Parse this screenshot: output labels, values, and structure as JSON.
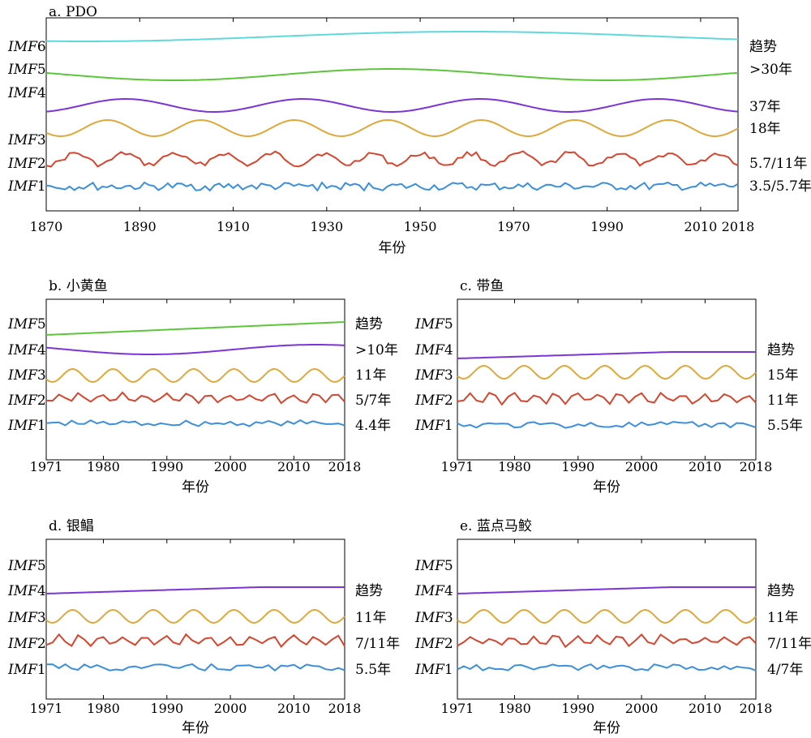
{
  "chart_data": [
    {
      "id": "a",
      "type": "line",
      "title": "a. PDO",
      "xlabel": "年份",
      "xlim": [
        1870,
        2018
      ],
      "xticks": [
        1870,
        1890,
        1910,
        1930,
        1950,
        1970,
        1990,
        2010,
        2018
      ],
      "imf_labels": [
        "IMF6",
        "IMF5",
        "IMF4",
        "IMF3",
        "IMF2",
        "IMF1"
      ],
      "period_labels": [
        "趋势",
        ">30年",
        "37年",
        "18年",
        "5.7/11年",
        "3.5/5.7年"
      ],
      "series": [
        {
          "name": "IMF6",
          "color": "#5ed8dc"
        },
        {
          "name": "IMF5",
          "color": "#5cc63a"
        },
        {
          "name": "IMF4",
          "color": "#7b34d6"
        },
        {
          "name": "IMF3",
          "color": "#e0a83a"
        },
        {
          "name": "IMF2",
          "color": "#d6462f"
        },
        {
          "name": "IMF1",
          "color": "#3c8fdc"
        }
      ]
    },
    {
      "id": "b",
      "type": "line",
      "title": "b. 小黄鱼",
      "xlabel": "年份",
      "xlim": [
        1971,
        2018
      ],
      "xticks": [
        1971,
        1980,
        1990,
        2000,
        2010,
        2018
      ],
      "imf_labels": [
        "IMF5",
        "IMF4",
        "IMF3",
        "IMF2",
        "IMF1"
      ],
      "period_labels": [
        "趋势",
        ">10年",
        "11年",
        "5/7年",
        "4.4年"
      ],
      "series": [
        {
          "name": "IMF5",
          "color": "#5cc63a"
        },
        {
          "name": "IMF4",
          "color": "#7b34d6"
        },
        {
          "name": "IMF3",
          "color": "#e0a83a"
        },
        {
          "name": "IMF2",
          "color": "#d6462f"
        },
        {
          "name": "IMF1",
          "color": "#3c8fdc"
        }
      ]
    },
    {
      "id": "c",
      "type": "line",
      "title": "c. 带鱼",
      "xlabel": "年份",
      "xlim": [
        1971,
        2018
      ],
      "xticks": [
        1971,
        1980,
        1990,
        2000,
        2010,
        2018
      ],
      "imf_labels": [
        "IMF5",
        "IMF4",
        "IMF3",
        "IMF2",
        "IMF1"
      ],
      "period_labels": [
        "趋势",
        "15年",
        "11年",
        "5.5年"
      ],
      "series": [
        {
          "name": "IMF4",
          "color": "#7b34d6"
        },
        {
          "name": "IMF3",
          "color": "#e0a83a"
        },
        {
          "name": "IMF2",
          "color": "#d6462f"
        },
        {
          "name": "IMF1",
          "color": "#3c8fdc"
        }
      ]
    },
    {
      "id": "d",
      "type": "line",
      "title": "d. 银鲳",
      "xlabel": "年份",
      "xlim": [
        1971,
        2018
      ],
      "xticks": [
        1971,
        1980,
        1990,
        2000,
        2010,
        2018
      ],
      "imf_labels": [
        "IMF5",
        "IMF4",
        "IMF3",
        "IMF2",
        "IMF1"
      ],
      "period_labels": [
        "趋势",
        "11年",
        "7/11年",
        "5.5年"
      ],
      "series": [
        {
          "name": "IMF4",
          "color": "#7b34d6"
        },
        {
          "name": "IMF3",
          "color": "#e0a83a"
        },
        {
          "name": "IMF2",
          "color": "#d6462f"
        },
        {
          "name": "IMF1",
          "color": "#3c8fdc"
        }
      ]
    },
    {
      "id": "e",
      "type": "line",
      "title": "e. 蓝点马鲛",
      "xlabel": "年份",
      "xlim": [
        1971,
        2018
      ],
      "xticks": [
        1971,
        1980,
        1990,
        2000,
        2010,
        2018
      ],
      "imf_labels": [
        "IMF5",
        "IMF4",
        "IMF3",
        "IMF2",
        "IMF1"
      ],
      "period_labels": [
        "趋势",
        "11年",
        "7/11年",
        "4/7年"
      ],
      "series": [
        {
          "name": "IMF4",
          "color": "#7b34d6"
        },
        {
          "name": "IMF3",
          "color": "#e0a83a"
        },
        {
          "name": "IMF2",
          "color": "#d6462f"
        },
        {
          "name": "IMF1",
          "color": "#3c8fdc"
        }
      ]
    }
  ]
}
